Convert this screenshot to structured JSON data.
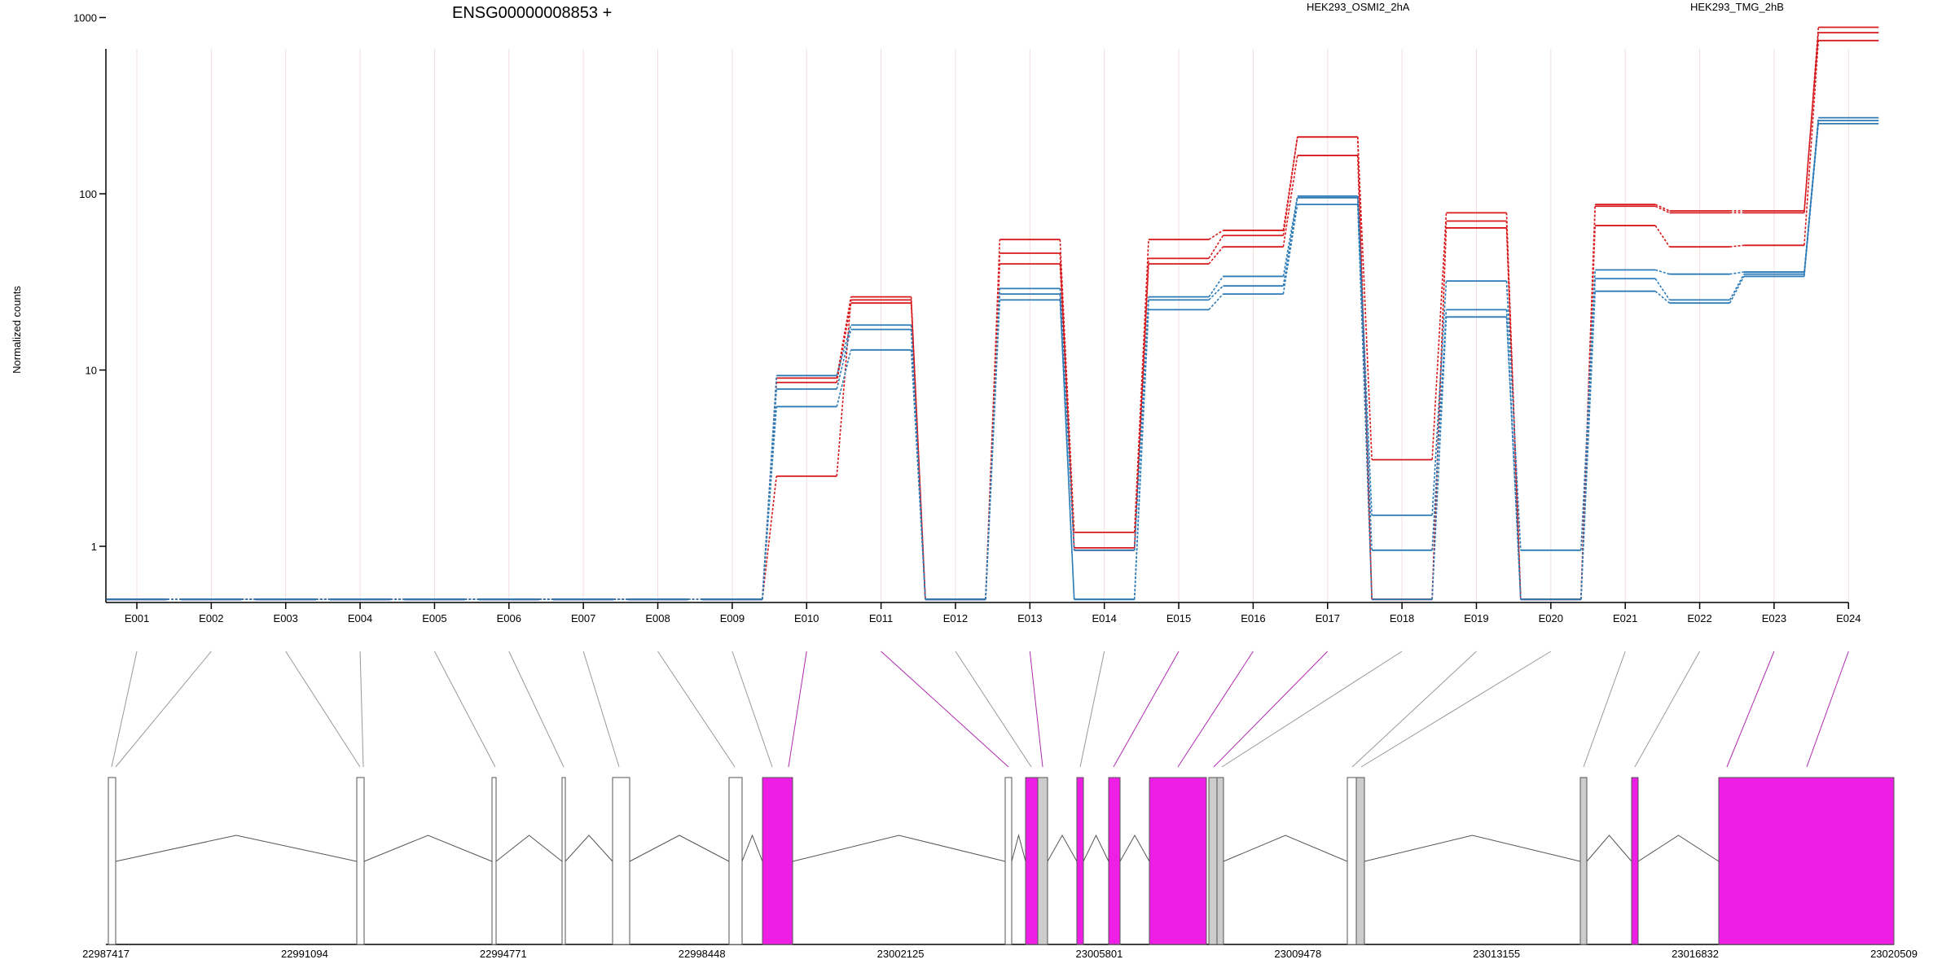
{
  "chart_data": {
    "type": "line",
    "title": "ENSG00000008853 +",
    "ylabel": "Normalized counts",
    "xlabel": "",
    "yscale": "log",
    "ylim": [
      0.5,
      1000
    ],
    "y_ticks": [
      1,
      10,
      100,
      1000
    ],
    "grid": true,
    "legend_position": "top",
    "categories": [
      "E001",
      "E002",
      "E003",
      "E004",
      "E005",
      "E006",
      "E007",
      "E008",
      "E009",
      "E010",
      "E011",
      "E012",
      "E013",
      "E014",
      "E015",
      "E016",
      "E017",
      "E018",
      "E019",
      "E020",
      "E021",
      "E022",
      "E023",
      "E024"
    ],
    "legend": [
      {
        "name": "HEK293_OSMI2_2hA",
        "color": "#d7191c"
      },
      {
        "name": "HEK293_TMG_2hB",
        "color": "#2c7bb6"
      }
    ],
    "series": [
      {
        "group": "HEK293_OSMI2_2hA",
        "color": "#d7191c",
        "values": [
          0.5,
          0.5,
          0.5,
          0.5,
          0.5,
          0.5,
          0.5,
          0.5,
          0.5,
          2.5,
          25,
          0.5,
          55,
          1.2,
          55,
          62,
          210,
          3.1,
          78,
          0.5,
          85,
          78,
          78,
          880
        ]
      },
      {
        "group": "HEK293_OSMI2_2hA",
        "color": "#d7191c",
        "values": [
          0.5,
          0.5,
          0.5,
          0.5,
          0.5,
          0.5,
          0.5,
          0.5,
          0.5,
          9,
          26,
          0.5,
          46,
          0.98,
          43,
          58,
          210,
          0.5,
          70,
          0.5,
          87,
          80,
          80,
          820
        ]
      },
      {
        "group": "HEK293_OSMI2_2hA",
        "color": "#d7191c",
        "values": [
          0.5,
          0.5,
          0.5,
          0.5,
          0.5,
          0.5,
          0.5,
          0.5,
          0.5,
          8.5,
          24,
          0.5,
          40,
          0.95,
          40,
          50,
          165,
          0.5,
          64,
          0.5,
          66,
          50,
          51,
          740
        ]
      },
      {
        "group": "HEK293_TMG_2hB",
        "color": "#2c7bb6",
        "values": [
          0.5,
          0.5,
          0.5,
          0.5,
          0.5,
          0.5,
          0.5,
          0.5,
          0.5,
          9.3,
          18,
          0.5,
          29,
          0.95,
          26,
          34,
          97,
          1.5,
          32,
          0.95,
          37,
          35,
          36,
          270
        ]
      },
      {
        "group": "HEK293_TMG_2hB",
        "color": "#2c7bb6",
        "values": [
          0.5,
          0.5,
          0.5,
          0.5,
          0.5,
          0.5,
          0.5,
          0.5,
          0.5,
          7.8,
          17,
          0.5,
          27,
          0.5,
          25,
          30,
          95,
          0.95,
          22,
          0.5,
          33,
          25,
          35,
          260
        ]
      },
      {
        "group": "HEK293_TMG_2hB",
        "color": "#2c7bb6",
        "values": [
          0.5,
          0.5,
          0.5,
          0.5,
          0.5,
          0.5,
          0.5,
          0.5,
          0.5,
          6.2,
          13,
          0.5,
          25,
          0.5,
          22,
          27,
          87,
          0.5,
          20,
          0.5,
          28,
          24,
          34,
          250
        ]
      }
    ],
    "genomic_axis": {
      "start": 22987417,
      "end": 23020509,
      "tick_labels": [
        "22987417",
        "22991094",
        "22994771",
        "22998448",
        "23002125",
        "23005801",
        "23009478",
        "23013155",
        "23016832",
        "23020509"
      ]
    },
    "exon_colors": {
      "not_significant": "#ffffff",
      "significant": "#ee1ee6",
      "overlap": "#cccccc"
    },
    "exon_status": [
      "plain",
      "plain",
      "plain",
      "plain",
      "plain",
      "plain",
      "plain",
      "plain",
      "plain",
      "significant",
      "significant",
      "plain",
      "significant",
      "grey",
      "significant",
      "significant",
      "significant",
      "grey",
      "grey",
      "grey",
      "grey",
      "plain",
      "significant",
      "significant"
    ]
  }
}
